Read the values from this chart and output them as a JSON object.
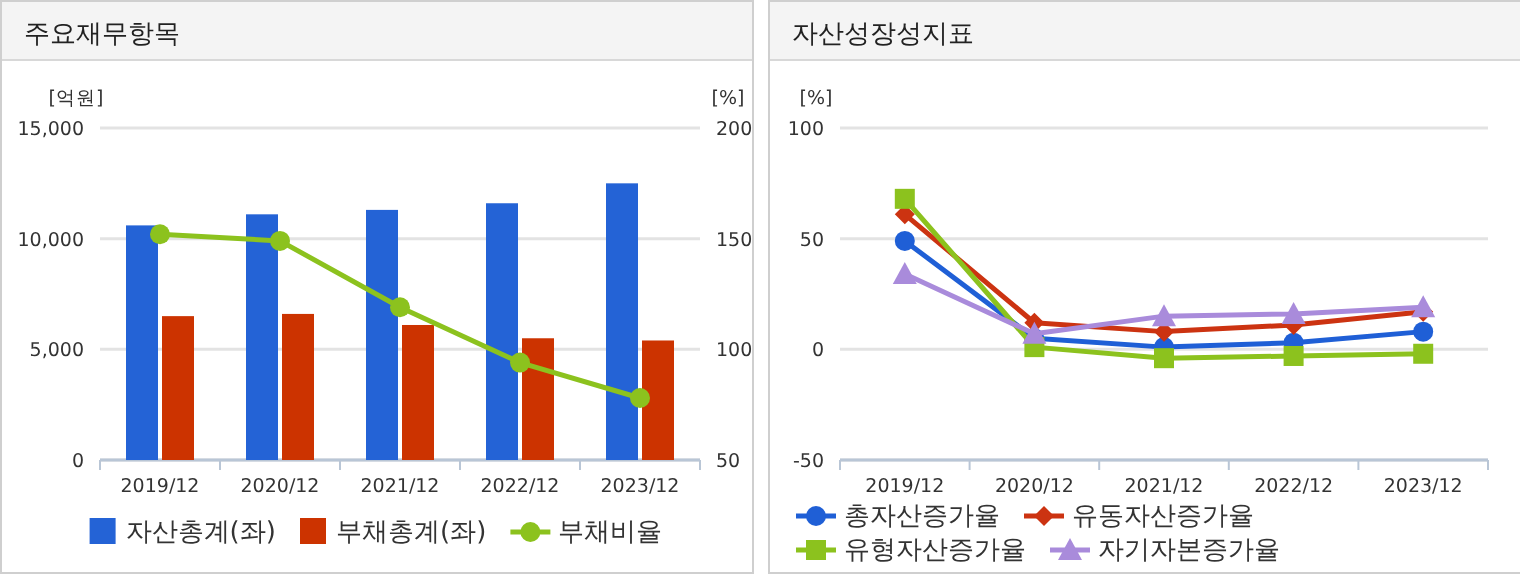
{
  "chart_data": [
    {
      "type": "bar",
      "title": "주요재무항목",
      "ylabel": "[억원]",
      "y2label": "[%]",
      "categories": [
        "2019/12",
        "2020/12",
        "2021/12",
        "2022/12",
        "2023/12"
      ],
      "series": [
        {
          "name": "자산총계(좌)",
          "color": "#2463d6",
          "values": [
            10600,
            11100,
            11300,
            11600,
            12500
          ]
        },
        {
          "name": "부채총계(좌)",
          "color": "#cc3300",
          "values": [
            6500,
            6600,
            6100,
            5500,
            5400
          ]
        },
        {
          "name": "부채비율",
          "type": "line",
          "axis": "y2",
          "color": "#8cc21e",
          "marker": "circle",
          "values": [
            152,
            149,
            119,
            94,
            78
          ]
        }
      ],
      "ylim": [
        0,
        15000
      ],
      "yticks": [
        {
          "value": 0,
          "label": "0"
        },
        {
          "value": 5000,
          "label": "5,000"
        },
        {
          "value": 10000,
          "label": "10,000"
        },
        {
          "value": 15000,
          "label": "15,000"
        }
      ],
      "y2lim": [
        50,
        200
      ],
      "y2ticks": [
        50,
        100,
        150,
        200
      ],
      "grid": "y",
      "legend": "bottom"
    },
    {
      "type": "line",
      "title": "자산성장성지표",
      "ylabel": "[%]",
      "categories": [
        "2019/12",
        "2020/12",
        "2021/12",
        "2022/12",
        "2023/12"
      ],
      "series": [
        {
          "name": "총자산증가율",
          "color": "#1f5fd6",
          "marker": "circle",
          "values": [
            49,
            5,
            1,
            3,
            8
          ]
        },
        {
          "name": "유동자산증가율",
          "color": "#cc3311",
          "marker": "diamond",
          "values": [
            61,
            12,
            8,
            11,
            17
          ]
        },
        {
          "name": "유형자산증가율",
          "color": "#8cc21e",
          "marker": "square",
          "values": [
            68,
            1,
            -4,
            -3,
            -2
          ]
        },
        {
          "name": "자기자본증가율",
          "color": "#a98bdb",
          "marker": "triangle",
          "values": [
            34,
            7,
            15,
            16,
            19
          ]
        }
      ],
      "ylim": [
        -50,
        100
      ],
      "yticks": [
        -50,
        0,
        50,
        100
      ],
      "grid": "y",
      "legend": "bottom"
    }
  ]
}
